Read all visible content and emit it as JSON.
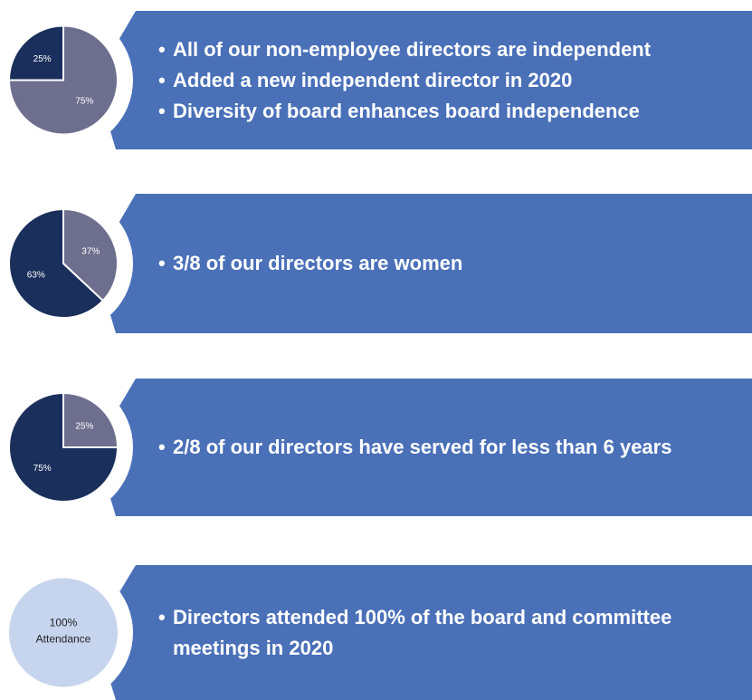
{
  "chart_data": [
    {
      "type": "pie",
      "values": [
        75,
        25
      ],
      "value_labels": [
        "75%",
        "25%"
      ],
      "colors": [
        "#6e6f8e",
        "#1b2f5c"
      ]
    },
    {
      "type": "pie",
      "values": [
        37,
        63
      ],
      "value_labels": [
        "37%",
        "63%"
      ],
      "colors": [
        "#6e6f8e",
        "#1b2f5c"
      ]
    },
    {
      "type": "pie",
      "values": [
        25,
        75
      ],
      "value_labels": [
        "25%",
        "75%"
      ],
      "colors": [
        "#6e6f8e",
        "#1b2f5c"
      ]
    },
    {
      "type": "pie",
      "values": [
        100
      ],
      "value_labels": [
        "100%"
      ],
      "label": "Attendance",
      "colors": [
        "#c6d4ee"
      ]
    }
  ],
  "panels": [
    {
      "bullets": [
        "All of our non-employee directors are independent",
        "Added a new independent director in 2020",
        "Diversity of board enhances board independence"
      ]
    },
    {
      "bullets": [
        "3/8 of our directors are women"
      ]
    },
    {
      "bullets": [
        "2/8 of our directors have served for less than 6 years"
      ]
    },
    {
      "bullets": [
        "Directors attended 100% of the board and committee meetings in 2020"
      ]
    }
  ]
}
